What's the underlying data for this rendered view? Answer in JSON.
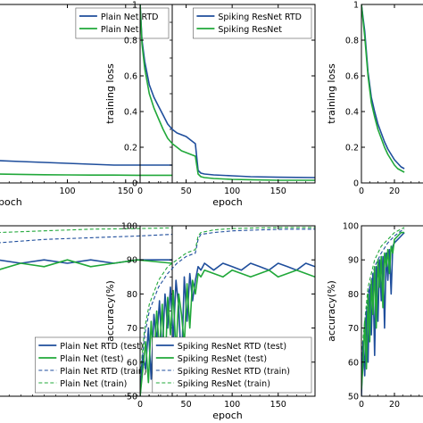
{
  "colors": {
    "rtd": "#1f4e9c",
    "plain": "#21a83a",
    "axis": "#000000"
  },
  "chart_data": [
    {
      "type": "line",
      "panel": "top-left",
      "title": "",
      "xlabel": "epoch",
      "ylabel": "",
      "xlim": [
        0,
        190
      ],
      "ylim": [
        0,
        1.0
      ],
      "xticks": [
        100,
        150
      ],
      "yticks": [],
      "legend": {
        "placement": "top-right",
        "entries": [
          "Plain Net RTD",
          "Plain Net"
        ]
      },
      "series": [
        {
          "name": "Plain Net RTD",
          "color_key": "rtd",
          "style": "solid",
          "x": [
            0,
            20,
            40,
            60,
            80,
            100,
            120,
            140,
            160,
            190
          ],
          "y": [
            0.14,
            0.13,
            0.125,
            0.12,
            0.115,
            0.11,
            0.105,
            0.1,
            0.1,
            0.1
          ]
        },
        {
          "name": "Plain Net",
          "color_key": "plain",
          "style": "solid",
          "x": [
            0,
            20,
            40,
            60,
            80,
            100,
            120,
            140,
            160,
            190
          ],
          "y": [
            0.06,
            0.055,
            0.05,
            0.048,
            0.046,
            0.045,
            0.044,
            0.044,
            0.043,
            0.043
          ]
        }
      ]
    },
    {
      "type": "line",
      "panel": "top-middle",
      "title": "",
      "xlabel": "epoch",
      "ylabel": "training loss",
      "xlim": [
        0,
        190
      ],
      "ylim": [
        0,
        1.0
      ],
      "xticks": [
        0,
        50,
        100,
        150
      ],
      "yticks": [
        0.0,
        0.2,
        0.4,
        0.6,
        0.8,
        1.0
      ],
      "legend": {
        "placement": "top-right",
        "entries": [
          "Spiking ResNet RTD",
          "Spiking ResNet"
        ]
      },
      "series": [
        {
          "name": "Spiking ResNet RTD",
          "color_key": "rtd",
          "style": "solid",
          "x": [
            0,
            2,
            5,
            10,
            15,
            20,
            25,
            30,
            35,
            40,
            45,
            50,
            55,
            60,
            63,
            66,
            70,
            80,
            100,
            120,
            150,
            190
          ],
          "y": [
            1.0,
            0.8,
            0.68,
            0.55,
            0.48,
            0.43,
            0.38,
            0.33,
            0.3,
            0.28,
            0.27,
            0.26,
            0.24,
            0.22,
            0.07,
            0.055,
            0.05,
            0.045,
            0.04,
            0.035,
            0.032,
            0.03
          ]
        },
        {
          "name": "Spiking ResNet",
          "color_key": "plain",
          "style": "solid",
          "x": [
            0,
            2,
            5,
            10,
            15,
            20,
            25,
            30,
            35,
            40,
            45,
            50,
            55,
            60,
            63,
            66,
            70,
            80,
            100,
            120,
            150,
            190
          ],
          "y": [
            1.0,
            0.78,
            0.64,
            0.5,
            0.42,
            0.36,
            0.3,
            0.25,
            0.22,
            0.2,
            0.18,
            0.17,
            0.16,
            0.15,
            0.05,
            0.035,
            0.03,
            0.025,
            0.02,
            0.018,
            0.015,
            0.015
          ]
        }
      ]
    },
    {
      "type": "line",
      "panel": "top-right",
      "title": "",
      "xlabel": "",
      "ylabel": "training loss",
      "xlim": [
        0,
        80
      ],
      "ylim": [
        0,
        1.0
      ],
      "xticks": [
        0,
        20
      ],
      "yticks": [
        0.0,
        0.2,
        0.4,
        0.6,
        0.8,
        1.0
      ],
      "legend": {
        "placement": "none",
        "entries": []
      },
      "series": [
        {
          "name": "",
          "color_key": "rtd",
          "style": "solid",
          "x": [
            0,
            2,
            4,
            6,
            8,
            10,
            12,
            14,
            16,
            18,
            20,
            22,
            24,
            26
          ],
          "y": [
            1.0,
            0.85,
            0.62,
            0.48,
            0.4,
            0.33,
            0.28,
            0.23,
            0.19,
            0.16,
            0.13,
            0.11,
            0.09,
            0.08
          ]
        },
        {
          "name": "",
          "color_key": "plain",
          "style": "solid",
          "x": [
            0,
            2,
            4,
            6,
            8,
            10,
            12,
            14,
            16,
            18,
            20,
            22,
            24,
            26
          ],
          "y": [
            1.0,
            0.82,
            0.6,
            0.45,
            0.37,
            0.3,
            0.25,
            0.2,
            0.16,
            0.13,
            0.1,
            0.08,
            0.07,
            0.06
          ]
        }
      ]
    },
    {
      "type": "line",
      "panel": "bottom-left",
      "title": "",
      "xlabel": "",
      "ylabel": "",
      "xlim": [
        0,
        190
      ],
      "ylim": [
        50,
        100
      ],
      "xticks": [],
      "yticks": [],
      "legend": {
        "placement": "bottom-right",
        "entries": [
          "Plain Net RTD (test)",
          "Plain Net (test)",
          "Plain Net RTD (train)",
          "Plain Net (train)"
        ]
      },
      "series": [
        {
          "name": "Plain Net RTD (test)",
          "color_key": "rtd",
          "style": "solid",
          "x": [
            0,
            20,
            40,
            60,
            80,
            100,
            120,
            140,
            160,
            190
          ],
          "y": [
            89,
            88,
            90,
            89,
            90,
            89,
            90,
            89,
            90,
            90
          ]
        },
        {
          "name": "Plain Net (test)",
          "color_key": "plain",
          "style": "solid",
          "x": [
            0,
            20,
            40,
            60,
            80,
            100,
            120,
            140,
            160,
            190
          ],
          "y": [
            88,
            90,
            87,
            89,
            88,
            90,
            88,
            89,
            90,
            89
          ]
        },
        {
          "name": "Plain Net RTD (train)",
          "color_key": "rtd",
          "style": "dashed",
          "x": [
            0,
            40,
            80,
            120,
            160,
            190
          ],
          "y": [
            94,
            95,
            96,
            96.5,
            97,
            97.5
          ]
        },
        {
          "name": "Plain Net (train)",
          "color_key": "plain",
          "style": "dashed",
          "x": [
            0,
            40,
            80,
            120,
            160,
            190
          ],
          "y": [
            97,
            98,
            98.5,
            99,
            99.2,
            99.4
          ]
        }
      ]
    },
    {
      "type": "line",
      "panel": "bottom-middle",
      "title": "",
      "xlabel": "epoch",
      "ylabel": "accuracy(%)",
      "xlim": [
        0,
        190
      ],
      "ylim": [
        50,
        100
      ],
      "xticks": [
        0,
        50,
        100,
        150
      ],
      "yticks": [
        50,
        60,
        70,
        80,
        90,
        100
      ],
      "legend": {
        "placement": "bottom-right",
        "entries": [
          "Spiking ResNet RTD (test)",
          "Spiking ResNet (test)",
          "Spiking ResNet RTD (train)",
          "Spiking ResNet (train)"
        ]
      },
      "series": [
        {
          "name": "Spiking ResNet RTD (test)",
          "color_key": "rtd",
          "style": "solid",
          "x": [
            0,
            3,
            6,
            9,
            12,
            15,
            18,
            21,
            24,
            27,
            30,
            33,
            36,
            39,
            42,
            45,
            48,
            51,
            54,
            57,
            60,
            63,
            66,
            70,
            80,
            90,
            100,
            110,
            120,
            130,
            140,
            150,
            160,
            170,
            180,
            190
          ],
          "y": [
            50,
            62,
            58,
            70,
            55,
            74,
            66,
            78,
            62,
            80,
            70,
            82,
            66,
            84,
            76,
            58,
            85,
            72,
            86,
            78,
            84,
            88,
            87,
            89,
            87,
            89,
            88,
            87,
            89,
            88,
            87,
            89,
            88,
            87,
            89,
            88
          ]
        },
        {
          "name": "Spiking ResNet (test)",
          "color_key": "plain",
          "style": "solid",
          "x": [
            0,
            3,
            6,
            9,
            12,
            15,
            18,
            21,
            24,
            27,
            30,
            33,
            36,
            39,
            42,
            45,
            48,
            51,
            54,
            57,
            60,
            63,
            66,
            70,
            80,
            90,
            100,
            110,
            120,
            130,
            140,
            150,
            160,
            170,
            180,
            190
          ],
          "y": [
            50,
            58,
            66,
            54,
            72,
            60,
            75,
            63,
            77,
            56,
            79,
            68,
            81,
            62,
            80,
            74,
            65,
            83,
            70,
            84,
            80,
            86,
            85,
            87,
            86,
            85,
            87,
            86,
            85,
            86,
            87,
            85,
            86,
            87,
            86,
            85
          ]
        },
        {
          "name": "Spiking ResNet RTD (train)",
          "color_key": "rtd",
          "style": "dashed",
          "x": [
            0,
            5,
            10,
            20,
            30,
            40,
            50,
            60,
            63,
            66,
            80,
            100,
            130,
            160,
            190
          ],
          "y": [
            55,
            68,
            75,
            82,
            86,
            89,
            91,
            92,
            96,
            97.5,
            98,
            98.5,
            98.8,
            99,
            99
          ]
        },
        {
          "name": "Spiking ResNet (train)",
          "color_key": "plain",
          "style": "dashed",
          "x": [
            0,
            5,
            10,
            20,
            30,
            40,
            50,
            60,
            63,
            66,
            80,
            100,
            130,
            160,
            190
          ],
          "y": [
            56,
            70,
            77,
            84,
            88,
            90,
            92,
            93,
            97,
            98,
            98.8,
            99.2,
            99.4,
            99.5,
            99.5
          ]
        }
      ]
    },
    {
      "type": "line",
      "panel": "bottom-right",
      "title": "",
      "xlabel": "",
      "ylabel": "accuracy(%)",
      "xlim": [
        0,
        80
      ],
      "ylim": [
        50,
        100
      ],
      "xticks": [
        0,
        20
      ],
      "yticks": [
        50,
        60,
        70,
        80,
        90,
        100
      ],
      "legend": {
        "placement": "none",
        "entries": []
      },
      "series": [
        {
          "name": "",
          "color_key": "rtd",
          "style": "solid",
          "x": [
            0,
            1,
            2,
            3,
            4,
            5,
            6,
            7,
            8,
            9,
            10,
            11,
            12,
            13,
            14,
            15,
            16,
            17,
            18,
            19,
            20,
            22,
            24,
            26
          ],
          "y": [
            50,
            66,
            56,
            75,
            60,
            82,
            68,
            86,
            62,
            88,
            72,
            90,
            78,
            91,
            70,
            92,
            84,
            93,
            80,
            94,
            95,
            96,
            97,
            98
          ]
        },
        {
          "name": "",
          "color_key": "plain",
          "style": "solid",
          "x": [
            0,
            1,
            2,
            3,
            4,
            5,
            6,
            7,
            8,
            9,
            10,
            11,
            12,
            13,
            14,
            15,
            16,
            17,
            18,
            19,
            20,
            22,
            24,
            26
          ],
          "y": [
            52,
            60,
            72,
            58,
            80,
            66,
            84,
            74,
            88,
            70,
            90,
            82,
            91,
            76,
            92,
            88,
            93,
            86,
            94,
            92,
            96,
            97,
            98,
            98
          ]
        },
        {
          "name": "",
          "color_key": "rtd",
          "style": "dashed",
          "x": [
            0,
            4,
            8,
            12,
            16,
            20,
            24,
            26
          ],
          "y": [
            60,
            80,
            88,
            92,
            95,
            97,
            98.5,
            99
          ]
        },
        {
          "name": "",
          "color_key": "plain",
          "style": "dashed",
          "x": [
            0,
            4,
            8,
            12,
            16,
            20,
            24,
            26
          ],
          "y": [
            62,
            82,
            90,
            94,
            96,
            98,
            99,
            99.5
          ]
        }
      ]
    }
  ]
}
